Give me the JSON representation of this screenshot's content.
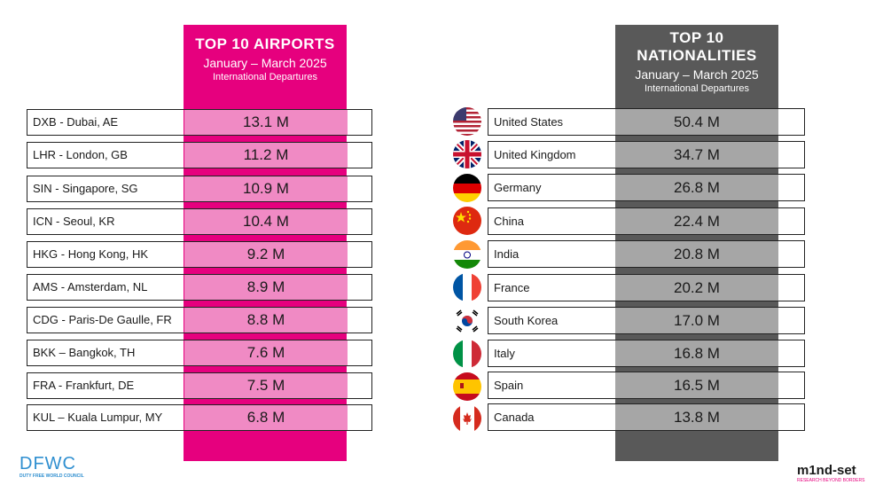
{
  "airports": {
    "title": "TOP 10 AIRPORTS",
    "period": "January – March 2025",
    "subtitle": "International Departures",
    "rows": [
      {
        "label": "DXB - Dubai, AE",
        "value": "13.1 M"
      },
      {
        "label": "LHR - London, GB",
        "value": "11.2 M"
      },
      {
        "label": "SIN - Singapore, SG",
        "value": "10.9 M"
      },
      {
        "label": "ICN - Seoul, KR",
        "value": "10.4 M"
      },
      {
        "label": "HKG - Hong Kong, HK",
        "value": "9.2 M"
      },
      {
        "label": "AMS - Amsterdam, NL",
        "value": "8.9 M"
      },
      {
        "label": "CDG - Paris-De Gaulle, FR",
        "value": "8.8 M"
      },
      {
        "label": "BKK – Bangkok, TH",
        "value": "7.6 M"
      },
      {
        "label": "FRA - Frankfurt, DE",
        "value": "7.5 M"
      },
      {
        "label": "KUL – Kuala Lumpur, MY",
        "value": "6.8 M"
      }
    ]
  },
  "nationalities": {
    "title_line1": "TOP 10",
    "title_line2": "NATIONALITIES",
    "period": "January – March 2025",
    "subtitle": "International Departures",
    "rows": [
      {
        "label": "United States",
        "value": "50.4 M",
        "flag": "us-flag-icon"
      },
      {
        "label": "United Kingdom",
        "value": "34.7 M",
        "flag": "uk-flag-icon"
      },
      {
        "label": "Germany",
        "value": "26.8 M",
        "flag": "germany-flag-icon"
      },
      {
        "label": "China",
        "value": "22.4 M",
        "flag": "china-flag-icon"
      },
      {
        "label": "India",
        "value": "20.8 M",
        "flag": "india-flag-icon"
      },
      {
        "label": "France",
        "value": "20.2 M",
        "flag": "france-flag-icon"
      },
      {
        "label": "South Korea",
        "value": "17.0 M",
        "flag": "south-korea-flag-icon"
      },
      {
        "label": "Italy",
        "value": "16.8 M",
        "flag": "italy-flag-icon"
      },
      {
        "label": "Spain",
        "value": "16.5 M",
        "flag": "spain-flag-icon"
      },
      {
        "label": "Canada",
        "value": "13.8 M",
        "flag": "canada-flag-icon"
      }
    ]
  },
  "logos": {
    "dfwc_text": "DFWC",
    "dfwc_caption": "DUTY FREE WORLD COUNCIL",
    "mindset_text": "m1nd-set",
    "mindset_caption": "RESEARCH BEYOND BORDERS"
  },
  "colors": {
    "pink": "#e6007e",
    "pink_light": "#f08ac4",
    "grey_dark": "#595959",
    "grey_light": "#a6a6a6"
  }
}
